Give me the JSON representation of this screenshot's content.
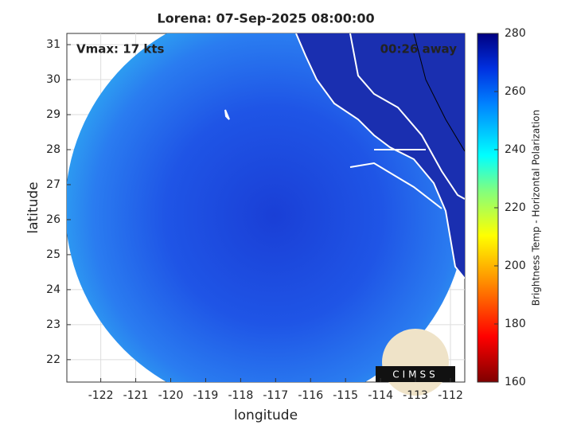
{
  "chart_data": {
    "type": "map",
    "title": "Lorena: 07-Sep-2025 08:00:00",
    "annotations": [
      "Vmax: 17 kts",
      "00:26 away"
    ],
    "x_label": "longitude",
    "y_label": "latitude",
    "xlim": [
      -122.97,
      -111.59
    ],
    "ylim": [
      21.36,
      31.32
    ],
    "xticks": [
      -122,
      -121,
      -120,
      -119,
      -118,
      -117,
      -116,
      -115,
      -114,
      -113,
      -112
    ],
    "yticks": [
      22,
      23,
      24,
      25,
      26,
      27,
      28,
      29,
      30,
      31
    ],
    "grid": true,
    "colorbar": {
      "label": "Brightness Temp - Horizontal Polarization",
      "lim": [
        160,
        280
      ],
      "ticks": [
        160,
        180,
        200,
        220,
        240,
        260,
        280
      ]
    },
    "logo": "CIMSS"
  }
}
